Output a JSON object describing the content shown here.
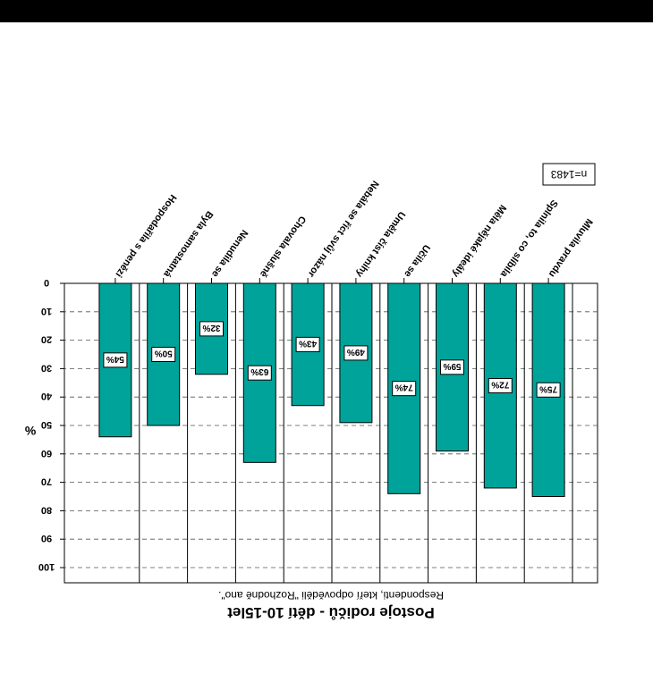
{
  "chart_data": {
    "type": "bar",
    "orientation": "inverted (rendered upside-down)",
    "title": "Postoje rodičů - dětí 10-15let",
    "subtitle": "Respondenti, kteří odpověděli \"Rozhodně ano\".",
    "ylabel": "%",
    "sample_note": "n=1483",
    "ylim": [
      0,
      100
    ],
    "yticks": [
      0,
      10,
      20,
      30,
      40,
      50,
      60,
      70,
      80,
      90,
      100
    ],
    "ytick_labels": [
      "0",
      "10",
      "20",
      "30",
      "40",
      "50",
      "60",
      "70",
      "80",
      "90",
      "100"
    ],
    "grid": true,
    "categories": [
      "Mluvila pravdu",
      "Splnila to, co slíbila",
      "Měla nějaké ideály",
      "Učila se",
      "Uměla číst knihy",
      "Nebála se říct svůj názor",
      "Chovala slušně",
      "Nenudila se",
      "Byla samostatná",
      "Hospodařila s penězi"
    ],
    "values": [
      75,
      72,
      59,
      74,
      49,
      43,
      63,
      32,
      50,
      54
    ],
    "value_labels": [
      "75%",
      "72%",
      "59%",
      "74%",
      "49%",
      "43%",
      "63%",
      "32%",
      "50%",
      "54%"
    ],
    "bar_color": "#00a39a"
  }
}
